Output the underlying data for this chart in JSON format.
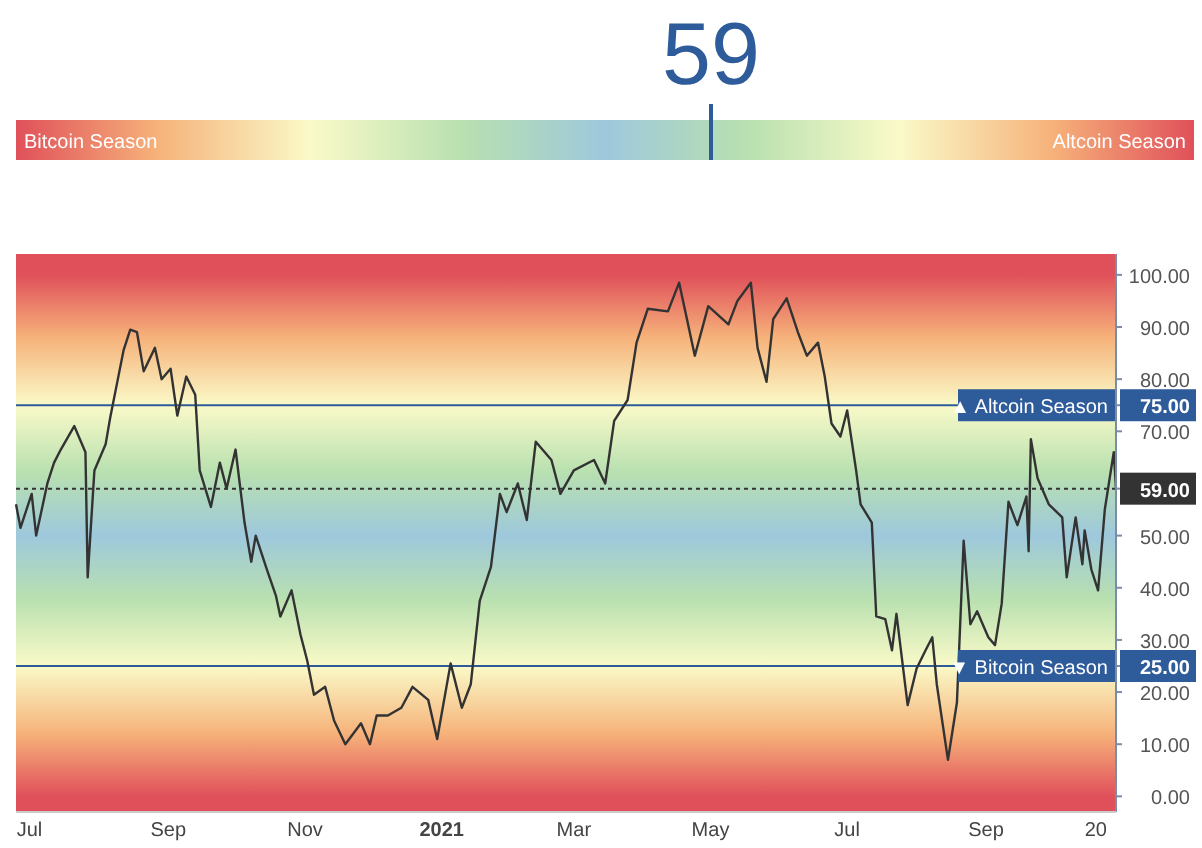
{
  "chart_data": [
    {
      "type": "other",
      "values": [
        59
      ],
      "data_labels": true,
      "color": "#2e5b9a",
      "annotations": [
        "Bitcoin Season",
        "Altcoin Season"
      ]
    },
    {
      "type": "line",
      "xlim": [
        "2020-06-25",
        "2021-10-29"
      ],
      "ylim": [
        -3,
        104
      ],
      "xticks": [
        {
          "value": "2020-07-01",
          "label": "Jul"
        },
        {
          "value": "2020-09-01",
          "label": "Sep"
        },
        {
          "value": "2020-11-01",
          "label": "Nov"
        },
        {
          "value": "2021-01-01",
          "label": "2021"
        },
        {
          "value": "2021-03-01",
          "label": "Mar"
        },
        {
          "value": "2021-05-01",
          "label": "May"
        },
        {
          "value": "2021-07-01",
          "label": "Jul"
        },
        {
          "value": "2021-09-01",
          "label": "Sep"
        },
        {
          "value": "2021-10-20",
          "label": "20"
        }
      ],
      "yticks": [
        {
          "value": 0,
          "label": "0.00"
        },
        {
          "value": 10,
          "label": "10.00"
        },
        {
          "value": 20,
          "label": "20.00"
        },
        {
          "value": 30,
          "label": "30.00"
        },
        {
          "value": 40,
          "label": "40.00"
        },
        {
          "value": 50,
          "label": "50.00"
        },
        {
          "value": 59,
          "label": "59.00"
        },
        {
          "value": 70,
          "label": "70.00"
        },
        {
          "value": 75,
          "label": "75.00"
        },
        {
          "value": 25,
          "label": "25.00"
        },
        {
          "value": 80,
          "label": "80.00"
        },
        {
          "value": 90,
          "label": "90.00"
        },
        {
          "value": 100,
          "label": "100.00"
        }
      ],
      "ref_lines": [
        {
          "axis": "y",
          "value": 75,
          "label": "▲ Altcoin Season",
          "color": "#2e5b9a",
          "line_style": "solid"
        },
        {
          "axis": "y",
          "value": 25,
          "label": "▼ Bitcoin Season",
          "color": "#2e5b9a",
          "line_style": "solid"
        },
        {
          "axis": "y",
          "value": 59,
          "label": null,
          "color": "#333333",
          "line_style": "dotted"
        }
      ],
      "series": [
        {
          "color": "#333333",
          "x": [
            "2020-06-25",
            "2020-06-27",
            "2020-07-02",
            "2020-07-04",
            "2020-07-09",
            "2020-07-12",
            "2020-07-15",
            "2020-07-21",
            "2020-07-26",
            "2020-07-27",
            "2020-07-30",
            "2020-08-04",
            "2020-08-06",
            "2020-08-09",
            "2020-08-12",
            "2020-08-15",
            "2020-08-18",
            "2020-08-21",
            "2020-08-26",
            "2020-08-29",
            "2020-09-02",
            "2020-09-05",
            "2020-09-09",
            "2020-09-13",
            "2020-09-15",
            "2020-09-20",
            "2020-09-24",
            "2020-09-27",
            "2020-10-01",
            "2020-10-05",
            "2020-10-08",
            "2020-10-10",
            "2020-10-15",
            "2020-10-19",
            "2020-10-21",
            "2020-10-26",
            "2020-10-30",
            "2020-11-02",
            "2020-11-05",
            "2020-11-10",
            "2020-11-14",
            "2020-11-19",
            "2020-11-26",
            "2020-11-30",
            "2020-12-03",
            "2020-12-08",
            "2020-12-14",
            "2020-12-19",
            "2020-12-26",
            "2020-12-30",
            "2021-01-05",
            "2021-01-10",
            "2021-01-14",
            "2021-01-18",
            "2021-01-23",
            "2021-01-27",
            "2021-01-30",
            "2021-02-04",
            "2021-02-08",
            "2021-02-12",
            "2021-02-19",
            "2021-02-23",
            "2021-03-01",
            "2021-03-10",
            "2021-03-15",
            "2021-03-19",
            "2021-03-25",
            "2021-03-29",
            "2021-04-03",
            "2021-04-12",
            "2021-04-17",
            "2021-04-24",
            "2021-04-30",
            "2021-05-09",
            "2021-05-13",
            "2021-05-19",
            "2021-05-22",
            "2021-05-26",
            "2021-05-29",
            "2021-06-04",
            "2021-06-09",
            "2021-06-13",
            "2021-06-18",
            "2021-06-21",
            "2021-06-24",
            "2021-06-28",
            "2021-07-01",
            "2021-07-05",
            "2021-07-07",
            "2021-07-12",
            "2021-07-14",
            "2021-07-18",
            "2021-07-21",
            "2021-07-23",
            "2021-07-28",
            "2021-08-01",
            "2021-08-05",
            "2021-08-08",
            "2021-08-10",
            "2021-08-15",
            "2021-08-19",
            "2021-08-22",
            "2021-08-25",
            "2021-08-28",
            "2021-09-02",
            "2021-09-05",
            "2021-09-08",
            "2021-09-11",
            "2021-09-15",
            "2021-09-19",
            "2021-09-20",
            "2021-09-21",
            "2021-09-24",
            "2021-09-29",
            "2021-10-05",
            "2021-10-07",
            "2021-10-11",
            "2021-10-14",
            "2021-10-15",
            "2021-10-18",
            "2021-10-21",
            "2021-10-24",
            "2021-10-28",
            "2021-10-29"
          ],
          "values": [
            56,
            51.5,
            58,
            50,
            60,
            64,
            66.5,
            71,
            66,
            42,
            62.5,
            67.5,
            72.5,
            79,
            85.5,
            89.5,
            89,
            81.5,
            86,
            80,
            82,
            73,
            80.5,
            77,
            62.5,
            55.5,
            64,
            59,
            66.5,
            52.5,
            45,
            50,
            43.5,
            38.5,
            34.5,
            39.5,
            31,
            26,
            19.5,
            21,
            14.5,
            10,
            14,
            10,
            15.5,
            15.5,
            17,
            21,
            18.5,
            11,
            25.5,
            17,
            21.5,
            37.5,
            44,
            58,
            54.5,
            60,
            53,
            68,
            64.5,
            58,
            62.5,
            64.5,
            60,
            72,
            76,
            87,
            93.5,
            93,
            98.5,
            84.5,
            94,
            90.5,
            95,
            98.5,
            86,
            79.5,
            91.5,
            95.5,
            89,
            84.5,
            87,
            80.5,
            71.5,
            69,
            74,
            62.5,
            56,
            52.5,
            34.5,
            34,
            28,
            35,
            17.5,
            24.5,
            28,
            30.5,
            21.5,
            7,
            18,
            49,
            33,
            35.5,
            30.5,
            29,
            37,
            56.5,
            52,
            57.5,
            47,
            68.5,
            61,
            56,
            53.5,
            42,
            53.5,
            44.5,
            51,
            43.5,
            39.5,
            55,
            66,
            59
          ]
        }
      ]
    }
  ]
}
